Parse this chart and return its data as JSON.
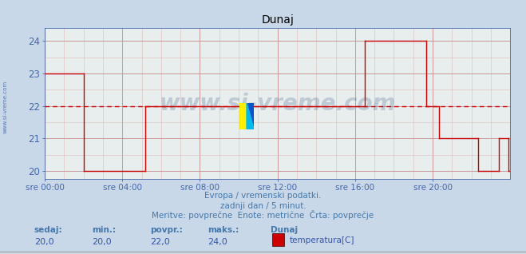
{
  "title": "Dunaj",
  "fig_bg_color": "#c8d8e8",
  "plot_bg_color": "#e8eeee",
  "line_color": "#cc0000",
  "avg_line_color": "#cc0000",
  "grid_color_major": "#cc9999",
  "grid_color_minor": "#ddbbbb",
  "axis_color": "#4466aa",
  "tick_color": "#4466aa",
  "title_color": "#000000",
  "text_color": "#4477aa",
  "label_color": "#3355aa",
  "xlabel_texts": [
    "sre 00:00",
    "sre 04:00",
    "sre 08:00",
    "sre 12:00",
    "sre 16:00",
    "sre 20:00"
  ],
  "ylabel_texts": [
    "20",
    "21",
    "22",
    "23",
    "24"
  ],
  "ylim": [
    19.75,
    24.4
  ],
  "xlim": [
    0,
    288
  ],
  "avg_value": 22.0,
  "subtitle1": "Evropa / vremenski podatki.",
  "subtitle2": "zadnji dan / 5 minut.",
  "subtitle3": "Meritve: povprečne  Enote: metrične  Črta: povprečje",
  "footer_labels": [
    "sedaj:",
    "min.:",
    "povpr.:",
    "maks.:",
    "Dunaj"
  ],
  "footer_values": [
    "20,0",
    "20,0",
    "22,0",
    "24,0"
  ],
  "footer_legend": "temperatura[C]",
  "legend_color": "#cc0000",
  "watermark": "www.si-vreme.com",
  "side_label": "www.si-vreme.com",
  "segments": [
    {
      "x": [
        0,
        24
      ],
      "y": [
        23,
        23
      ]
    },
    {
      "x": [
        24,
        24
      ],
      "y": [
        23,
        20
      ]
    },
    {
      "x": [
        24,
        62
      ],
      "y": [
        20,
        20
      ]
    },
    {
      "x": [
        62,
        62
      ],
      "y": [
        20,
        22
      ]
    },
    {
      "x": [
        62,
        198
      ],
      "y": [
        22,
        22
      ]
    },
    {
      "x": [
        198,
        198
      ],
      "y": [
        22,
        24
      ]
    },
    {
      "x": [
        198,
        236
      ],
      "y": [
        24,
        24
      ]
    },
    {
      "x": [
        236,
        236
      ],
      "y": [
        24,
        22
      ]
    },
    {
      "x": [
        236,
        244
      ],
      "y": [
        22,
        22
      ]
    },
    {
      "x": [
        244,
        244
      ],
      "y": [
        22,
        21
      ]
    },
    {
      "x": [
        244,
        268
      ],
      "y": [
        21,
        21
      ]
    },
    {
      "x": [
        268,
        268
      ],
      "y": [
        21,
        20
      ]
    },
    {
      "x": [
        268,
        281
      ],
      "y": [
        20,
        20
      ]
    },
    {
      "x": [
        281,
        281
      ],
      "y": [
        20,
        21
      ]
    },
    {
      "x": [
        281,
        287
      ],
      "y": [
        21,
        21
      ]
    },
    {
      "x": [
        287,
        287
      ],
      "y": [
        21,
        20
      ]
    },
    {
      "x": [
        287,
        288
      ],
      "y": [
        20,
        20
      ]
    }
  ]
}
